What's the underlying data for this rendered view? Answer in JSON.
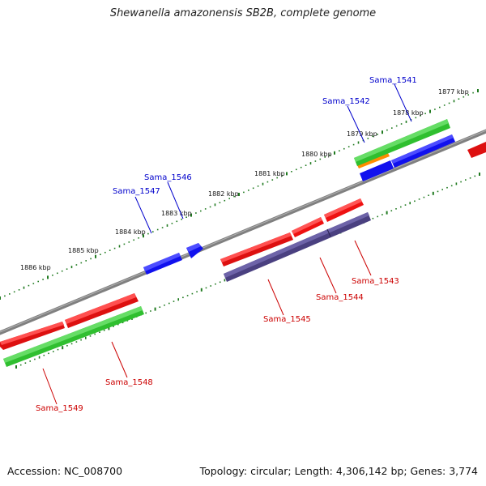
{
  "title": "Shewanella amazonensis SB2B, complete genome",
  "footer": {
    "accession": "Accession: NC_008700",
    "summary": "Topology: circular; Length: 4,306,142 bp; Genes: 3,774"
  },
  "colors": {
    "backbone": "#808080",
    "tick": "#1f7a1f",
    "label_plus": "#0000cc",
    "label_minus": "#cc0000",
    "gene_red": "#ee1111",
    "gene_green": "#33cc33",
    "gene_blue": "#1111ee",
    "gene_purple": "#4a4080",
    "gene_orange": "#ff8c00"
  },
  "kbp_labels": [
    "1877 kbp",
    "1878 kbp",
    "1879 kbp",
    "1880 kbp",
    "1881 kbp",
    "1882 kbp",
    "1883 kbp",
    "1884 kbp",
    "1885 kbp",
    "1886 kbp"
  ],
  "genes": [
    {
      "name": "Sama_1541",
      "strand": "plus",
      "color": "gene_green"
    },
    {
      "name": "Sama_1542",
      "strand": "plus",
      "color": "gene_orange"
    },
    {
      "name": "Sama_1543",
      "strand": "minus",
      "color": "gene_red"
    },
    {
      "name": "Sama_1544",
      "strand": "minus",
      "color": "gene_red"
    },
    {
      "name": "Sama_1545",
      "strand": "minus",
      "color": "gene_red"
    },
    {
      "name": "Sama_1546",
      "strand": "plus",
      "color": "gene_blue"
    },
    {
      "name": "Sama_1547",
      "strand": "plus",
      "color": "gene_blue"
    },
    {
      "name": "Sama_1548",
      "strand": "minus",
      "color": "gene_red"
    },
    {
      "name": "Sama_1549",
      "strand": "minus",
      "color": "gene_red"
    }
  ]
}
